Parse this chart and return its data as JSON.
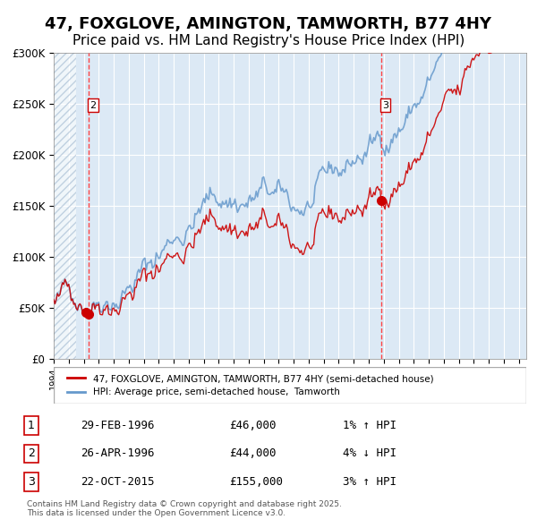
{
  "title": "47, FOXGLOVE, AMINGTON, TAMWORTH, B77 4HY",
  "subtitle": "Price paid vs. HM Land Registry's House Price Index (HPI)",
  "title_fontsize": 13,
  "subtitle_fontsize": 11,
  "background_color": "#dce9f5",
  "plot_bg_color": "#dce9f5",
  "left_hatch_color": "#b0c8e0",
  "ylabel": "",
  "xlabel": "",
  "ylim": [
    0,
    300000
  ],
  "yticks": [
    0,
    50000,
    100000,
    150000,
    200000,
    250000,
    300000
  ],
  "ytick_labels": [
    "£0",
    "£50K",
    "£100K",
    "£150K",
    "£200K",
    "£250K",
    "£300K"
  ],
  "red_line_color": "#cc0000",
  "blue_line_color": "#6699cc",
  "sale1_date": 1996.16,
  "sale1_price": 46000,
  "sale2_date": 1996.32,
  "sale2_price": 44000,
  "sale3_date": 2015.81,
  "sale3_price": 155000,
  "vline_color": "#ff4444",
  "vline_sale2": 1996.32,
  "vline_sale3": 2015.81,
  "xmin": 1994.0,
  "xmax": 2025.5,
  "legend_label_red": "47, FOXGLOVE, AMINGTON, TAMWORTH, B77 4HY (semi-detached house)",
  "legend_label_blue": "HPI: Average price, semi-detached house,  Tamworth",
  "table_rows": [
    {
      "num": "1",
      "date": "29-FEB-1996",
      "price": "£46,000",
      "change": "1% ↑ HPI"
    },
    {
      "num": "2",
      "date": "26-APR-1996",
      "price": "£44,000",
      "change": "4% ↓ HPI"
    },
    {
      "num": "3",
      "date": "22-OCT-2015",
      "price": "£155,000",
      "change": "3% ↑ HPI"
    }
  ],
  "footnote": "Contains HM Land Registry data © Crown copyright and database right 2025.\nThis data is licensed under the Open Government Licence v3.0.",
  "hatch_end": 1995.5
}
